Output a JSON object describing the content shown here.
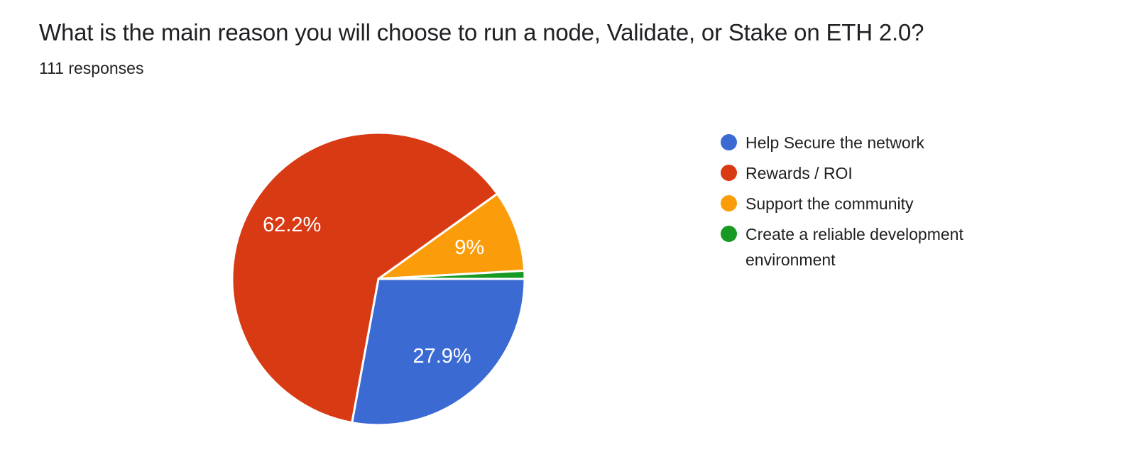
{
  "header": {
    "title": "What is the main reason you will choose to run a node, Validate, or Stake on ETH 2.0?",
    "responses_text": "111 responses"
  },
  "chart_data": {
    "type": "pie",
    "title": "What is the main reason you will choose to run a node, Validate, or Stake on ETH 2.0?",
    "subtitle": "111 responses",
    "total_responses": 111,
    "start_angle_deg": 90,
    "direction": "clockwise",
    "legend_position": "right",
    "slice_border_color": "#ffffff",
    "label_color": "#ffffff",
    "slices": [
      {
        "label": "Help Secure the network",
        "percent": 27.9,
        "display_label": "27.9%",
        "color": "#3b6bd2"
      },
      {
        "label": "Rewards / ROI",
        "percent": 62.2,
        "display_label": "62.2%",
        "color": "#d83a14"
      },
      {
        "label": "Support the community",
        "percent": 9,
        "display_label": "9%",
        "color": "#fb9d0b"
      },
      {
        "label": "Create a reliable development environment",
        "percent": 0.9,
        "display_label": "",
        "color": "#169a23"
      }
    ]
  }
}
